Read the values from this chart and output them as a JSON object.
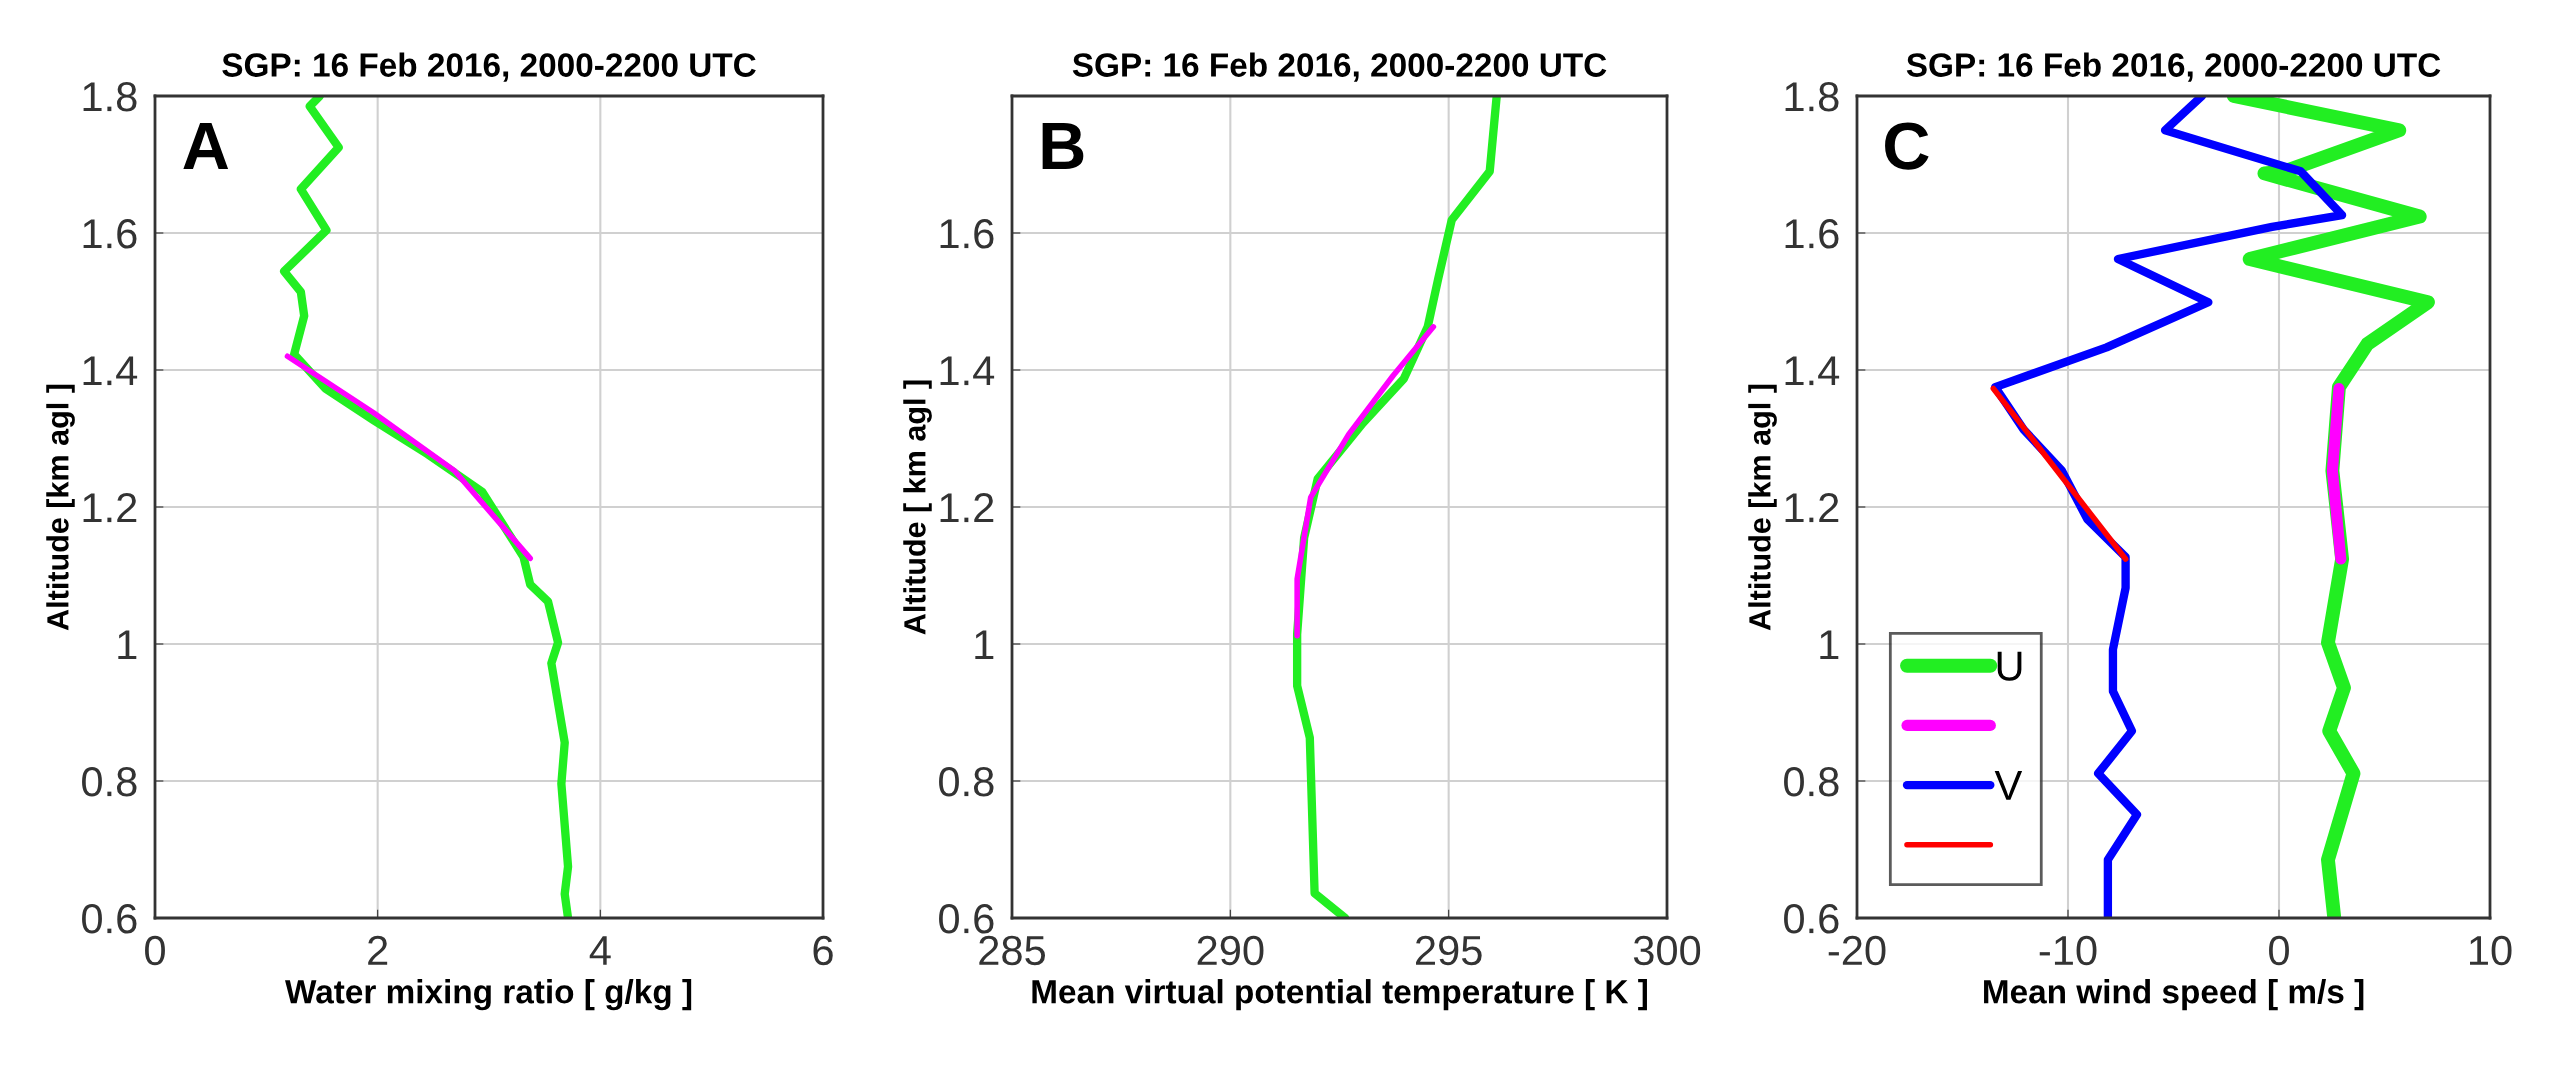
{
  "chart_data": [
    {
      "type": "line",
      "title": "SGP: 16 Feb 2016, 2000-2200 UTC",
      "xlabel": "Water mixing ratio [ g/kg ]",
      "ylabel": "Altitude [km agl ]",
      "annotations": [
        "A"
      ],
      "xlim": [
        0,
        6
      ],
      "xticks": [
        0,
        2,
        4,
        6
      ],
      "ylim": [
        0.6,
        1.8
      ],
      "yticks": [
        0.6,
        0.8,
        1,
        1.2,
        1.4,
        1.6,
        1.8
      ],
      "grid": true,
      "legend": false,
      "line_style": "solid",
      "marker": "none",
      "series": [
        {
          "color": "#22ee22",
          "x": [
            1.48,
            1.39,
            1.65,
            1.31,
            1.54,
            1.16,
            1.31,
            1.34,
            1.25,
            1.53,
            1.96,
            2.45,
            2.94,
            3.31,
            3.37,
            3.53,
            3.62,
            3.56,
            3.68,
            3.65,
            3.71,
            3.68,
            3.71
          ],
          "values": [
            1.8,
            1.785,
            1.725,
            1.664,
            1.604,
            1.544,
            1.514,
            1.479,
            1.423,
            1.373,
            1.327,
            1.277,
            1.222,
            1.127,
            1.087,
            1.062,
            1.002,
            0.972,
            0.856,
            0.796,
            0.675,
            0.635,
            0.6
          ]
        },
        {
          "color": "#ff00ff",
          "x": [
            1.19,
            1.96,
            2.69,
            3.37
          ],
          "values": [
            1.42,
            1.338,
            1.253,
            1.125
          ]
        }
      ]
    },
    {
      "type": "line",
      "title": "SGP: 16 Feb 2016, 2000-2200 UTC",
      "xlabel": "Mean virtual potential temperature [ K ]",
      "ylabel": "Altitude [ km agl ]",
      "annotations": [
        "B"
      ],
      "xlim": [
        285,
        300
      ],
      "xticks": [
        285,
        290,
        295,
        300
      ],
      "ylim": [
        0.6,
        1.8
      ],
      "yticks": [
        0.6,
        0.8,
        1,
        1.2,
        1.4,
        1.6
      ],
      "grid": true,
      "legend": false,
      "line_style": "solid",
      "marker": "none",
      "series": [
        {
          "color": "#22ee22",
          "x": [
            296.1,
            295.94,
            295.07,
            294.76,
            294.52,
            293.97,
            293.03,
            292.0,
            291.69,
            291.53,
            291.53,
            291.82,
            291.93,
            292.63
          ],
          "values": [
            1.8,
            1.69,
            1.619,
            1.533,
            1.463,
            1.387,
            1.322,
            1.241,
            1.155,
            1.014,
            0.939,
            0.863,
            0.636,
            0.6
          ]
        },
        {
          "color": "#ff00ff",
          "x": [
            294.65,
            293.73,
            292.71,
            291.84,
            291.53,
            291.53
          ],
          "values": [
            1.463,
            1.392,
            1.306,
            1.214,
            1.095,
            1.012
          ]
        }
      ]
    },
    {
      "type": "line",
      "title": "SGP: 16 Feb 2016, 2000-2200 UTC",
      "xlabel": "Mean wind speed [ m/s ]",
      "ylabel": "Altitude [km agl ]",
      "annotations": [
        "C"
      ],
      "xlim": [
        -20,
        10
      ],
      "xticks": [
        -20,
        -10,
        0,
        10
      ],
      "ylim": [
        0.6,
        1.8
      ],
      "yticks": [
        0.6,
        0.8,
        1,
        1.2,
        1.4,
        1.6,
        1.8
      ],
      "grid": true,
      "legend": "bottom left",
      "line_style": "solid",
      "marker": "none",
      "series": [
        {
          "name": "U",
          "color": "#22ee22",
          "x": [
            -2.14,
            5.7,
            0.27,
            -0.69,
            6.67,
            -1.39,
            7.06,
            4.19,
            2.84,
            2.53,
            2.99,
            2.32,
            3.08,
            2.38,
            3.53,
            2.32,
            2.62
          ],
          "values": [
            1.8,
            1.75,
            1.69,
            1.687,
            1.624,
            1.562,
            1.499,
            1.438,
            1.375,
            1.253,
            1.124,
            1.002,
            0.936,
            0.873,
            0.811,
            0.685,
            0.6
          ]
        },
        {
          "color": "#ff00ff",
          "x": [
            2.84,
            2.53,
            2.93
          ],
          "values": [
            1.373,
            1.253,
            1.124
          ]
        },
        {
          "name": "V",
          "color": "#0000ff",
          "x": [
            -3.65,
            -5.4,
            1.03,
            2.99,
            -0.33,
            -7.63,
            -3.35,
            -8.17,
            -13.45,
            -12.1,
            -10.29,
            -9.08,
            -7.27,
            -7.27,
            -7.87,
            -7.87,
            -6.97,
            -8.57,
            -6.73,
            -8.11,
            -8.11
          ],
          "values": [
            1.8,
            1.75,
            1.69,
            1.626,
            1.609,
            1.562,
            1.499,
            1.433,
            1.375,
            1.313,
            1.253,
            1.182,
            1.127,
            1.082,
            0.992,
            0.931,
            0.873,
            0.811,
            0.751,
            0.685,
            0.6
          ]
        },
        {
          "color": "#ff0000",
          "x": [
            -13.54,
            -7.27
          ],
          "values": [
            1.373,
            1.124
          ]
        }
      ]
    }
  ]
}
